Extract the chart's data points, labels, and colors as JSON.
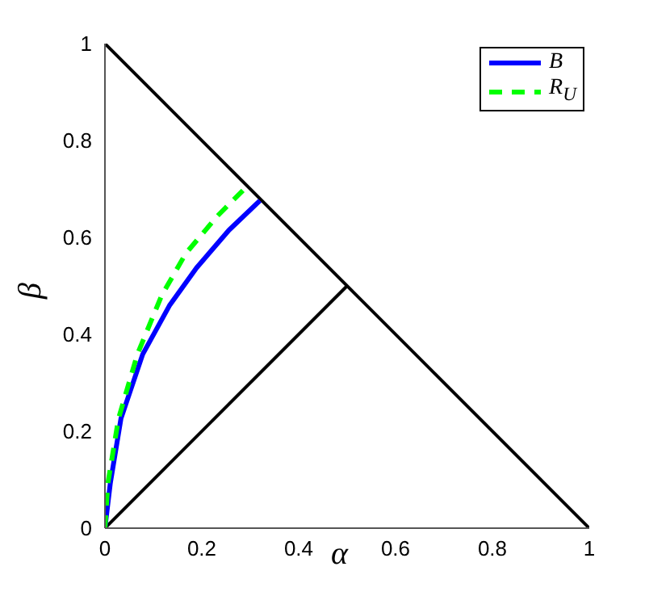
{
  "chart_data": {
    "type": "line",
    "xlabel": "α",
    "ylabel": "β",
    "xlim": [
      0,
      1
    ],
    "ylim": [
      0,
      1
    ],
    "xticks": [
      0,
      0.2,
      0.4,
      0.6,
      0.8,
      1
    ],
    "yticks": [
      0,
      0.2,
      0.4,
      0.6,
      0.8,
      1
    ],
    "grid": false,
    "legend": "top right",
    "marker": "none",
    "series": [
      {
        "color": "#000000",
        "line_style": "solid",
        "x": [
          0,
          1
        ],
        "values": [
          1,
          0
        ]
      },
      {
        "color": "#000000",
        "line_style": "solid",
        "x": [
          0,
          0.5
        ],
        "values": [
          0,
          0.5
        ]
      },
      {
        "name": "B",
        "color": "#0000ff",
        "line_style": "solid",
        "x": [
          0,
          0.011,
          0.033,
          0.078,
          0.133,
          0.189,
          0.256,
          0.32
        ],
        "values": [
          0,
          0.092,
          0.226,
          0.359,
          0.459,
          0.537,
          0.615,
          0.676
        ]
      },
      {
        "name": "R$_{U}$",
        "color": "#00ff00",
        "line_style": "dashed",
        "x": [
          0,
          0.006,
          0.028,
          0.067,
          0.117,
          0.167,
          0.233,
          0.294
        ],
        "values": [
          0,
          0.092,
          0.226,
          0.359,
          0.48,
          0.567,
          0.645,
          0.706
        ]
      }
    ]
  }
}
